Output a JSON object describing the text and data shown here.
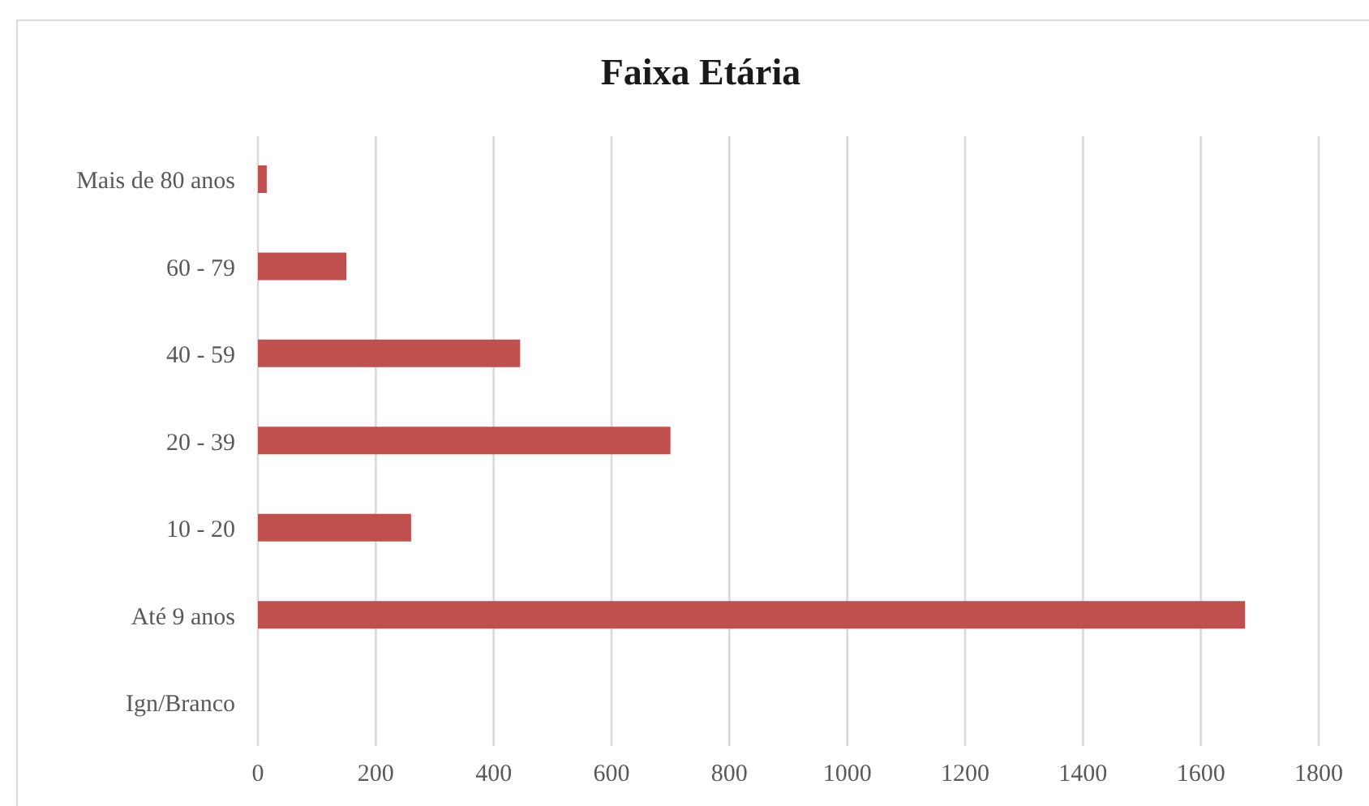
{
  "chart_data": {
    "type": "bar",
    "orientation": "horizontal",
    "title": "Faixa Etária",
    "categories": [
      "Mais de 80 anos",
      "60 - 79",
      "40 - 59",
      "20 - 39",
      "10 - 20",
      "Até 9 anos",
      "Ign/Branco"
    ],
    "values": [
      15,
      150,
      445,
      700,
      260,
      1675,
      0
    ],
    "color": "#c0504d",
    "xlim": [
      0,
      1800
    ],
    "xticks": [
      0,
      200,
      400,
      600,
      800,
      1000,
      1200,
      1400,
      1600,
      1800
    ],
    "grid": "x"
  }
}
